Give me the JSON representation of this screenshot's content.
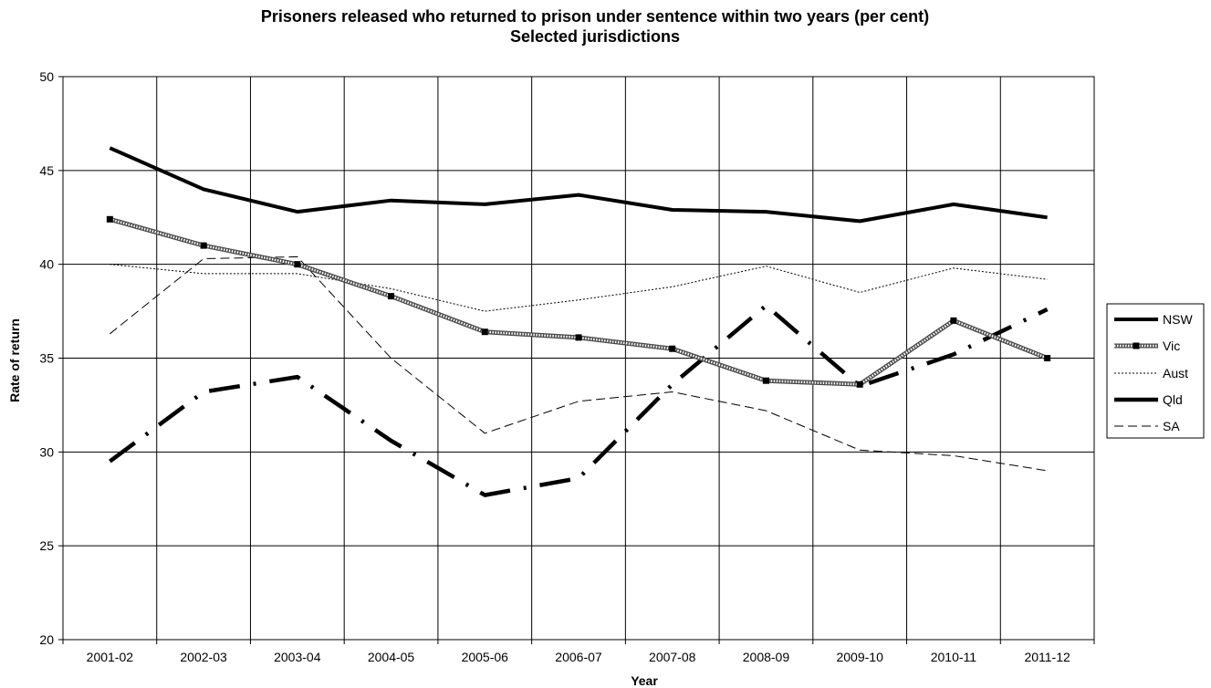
{
  "chart_data": {
    "type": "line",
    "title": "Prisoners released who returned to prison under sentence within two years (per cent)",
    "subtitle": "Selected jurisdictions",
    "xlabel": "Year",
    "ylabel": "Rate of return",
    "ylim": [
      20,
      50
    ],
    "yticks": [
      "20",
      "25",
      "30",
      "35",
      "40",
      "45",
      "50"
    ],
    "categories": [
      "2001-02",
      "2002-03",
      "2003-04",
      "2004-05",
      "2005-06",
      "2006-07",
      "2007-08",
      "2008-09",
      "2009-10",
      "2010-11",
      "2011-12"
    ],
    "grid": "on",
    "legend_position": "right",
    "series": [
      {
        "name": "NSW",
        "style": "solid-thick",
        "color": "#000000",
        "values": [
          46.2,
          44.0,
          42.8,
          43.4,
          43.2,
          43.7,
          42.9,
          42.8,
          42.3,
          43.2,
          42.5
        ]
      },
      {
        "name": "Vic",
        "style": "dotted-band-with-markers",
        "color": "#000000",
        "values": [
          42.4,
          41.0,
          40.0,
          38.3,
          36.4,
          36.1,
          35.5,
          33.8,
          33.6,
          37.0,
          35.0
        ]
      },
      {
        "name": "Aust",
        "style": "thin-dotted",
        "color": "#000000",
        "values": [
          40.0,
          39.5,
          39.5,
          38.7,
          37.5,
          38.1,
          38.8,
          39.9,
          38.5,
          39.8,
          39.2
        ]
      },
      {
        "name": "Qld",
        "style": "thick-dash-dot",
        "color": "#000000",
        "values": [
          29.5,
          33.2,
          34.0,
          30.6,
          27.7,
          28.6,
          33.6,
          37.8,
          33.5,
          35.2,
          37.6
        ]
      },
      {
        "name": "SA",
        "style": "dashed",
        "color": "#000000",
        "values": [
          36.3,
          40.3,
          40.4,
          35.0,
          31.0,
          32.7,
          33.2,
          32.2,
          30.1,
          29.8,
          29.0
        ]
      }
    ]
  }
}
